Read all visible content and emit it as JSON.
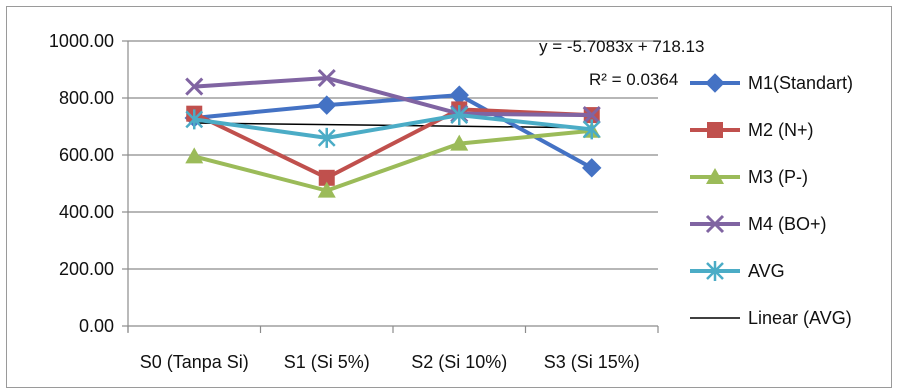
{
  "chart_data": {
    "type": "line",
    "categories": [
      "S0 (Tanpa Si)",
      "S1 (Si 5%)",
      "S2 (Si 10%)",
      "S3 (Si 15%)"
    ],
    "y_ticks": [
      "0.00",
      "200.00",
      "400.00",
      "600.00",
      "800.00",
      "1000.00"
    ],
    "ylim": [
      0,
      1000
    ],
    "grid": true,
    "legend_position": "right",
    "series": [
      {
        "name": "M1(Standart)",
        "values": [
          730,
          775,
          810,
          555
        ],
        "color": "#4472C4",
        "marker": "diamond"
      },
      {
        "name": "M2 (N+)",
        "values": [
          745,
          520,
          760,
          740
        ],
        "color": "#C0504D",
        "marker": "square"
      },
      {
        "name": "M3 (P-)",
        "values": [
          595,
          475,
          640,
          685
        ],
        "color": "#9BBB59",
        "marker": "triangle"
      },
      {
        "name": "M4 (BO+)",
        "values": [
          840,
          870,
          745,
          740
        ],
        "color": "#8064A2",
        "marker": "x"
      },
      {
        "name": "AVG",
        "values": [
          725,
          660,
          740,
          690
        ],
        "color": "#4BACC6",
        "marker": "star"
      }
    ],
    "trendline": {
      "name": "Linear (AVG)",
      "color": "#000000",
      "equation": "y = -5.7083x + 718.13",
      "r_squared": "R² = 0.0364",
      "slope": -5.7083,
      "intercept": 718.13
    }
  }
}
